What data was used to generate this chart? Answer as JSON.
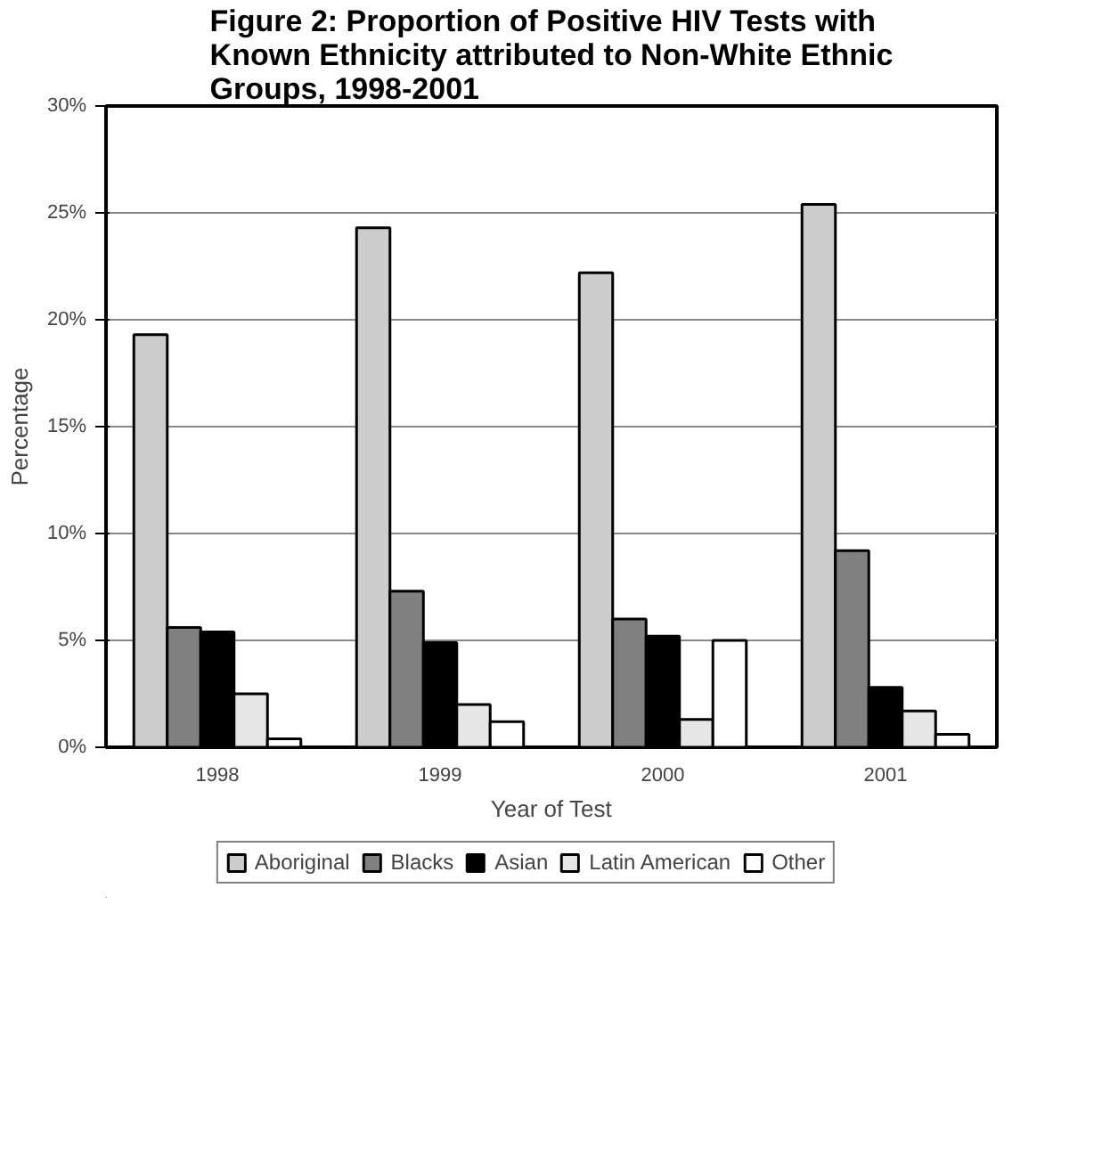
{
  "chart_data": {
    "type": "bar",
    "title": "Figure 2: Proportion of Positive HIV Tests with Known Ethnicity attributed to Non-White Ethnic Groups, 1998-2001",
    "xlabel": "Year of Test",
    "ylabel": "Percentage",
    "categories": [
      "1998",
      "1999",
      "2000",
      "2001"
    ],
    "series": [
      {
        "name": "Aboriginal",
        "color": "#cccccc",
        "values": [
          19.3,
          24.3,
          22.2,
          25.4
        ]
      },
      {
        "name": "Blacks",
        "color": "#808080",
        "values": [
          5.6,
          7.3,
          6.0,
          9.2
        ]
      },
      {
        "name": "Asian",
        "color": "#000000",
        "values": [
          5.4,
          4.9,
          5.2,
          2.8
        ]
      },
      {
        "name": "Latin American",
        "color": "#e6e6e6",
        "values": [
          2.5,
          2.0,
          1.3,
          1.7
        ]
      },
      {
        "name": "Other",
        "color": "#ffffff",
        "values": [
          0.4,
          1.2,
          5.0,
          0.6
        ]
      }
    ],
    "ylim": [
      0,
      30
    ],
    "yticks": [
      {
        "value": 0,
        "label": "0%"
      },
      {
        "value": 5,
        "label": "5%"
      },
      {
        "value": 10,
        "label": "10%"
      },
      {
        "value": 15,
        "label": "15%"
      },
      {
        "value": 20,
        "label": "20%"
      },
      {
        "value": 25,
        "label": "25%"
      },
      {
        "value": 30,
        "label": "30%"
      }
    ],
    "grid": "y",
    "legend": "bottom"
  }
}
